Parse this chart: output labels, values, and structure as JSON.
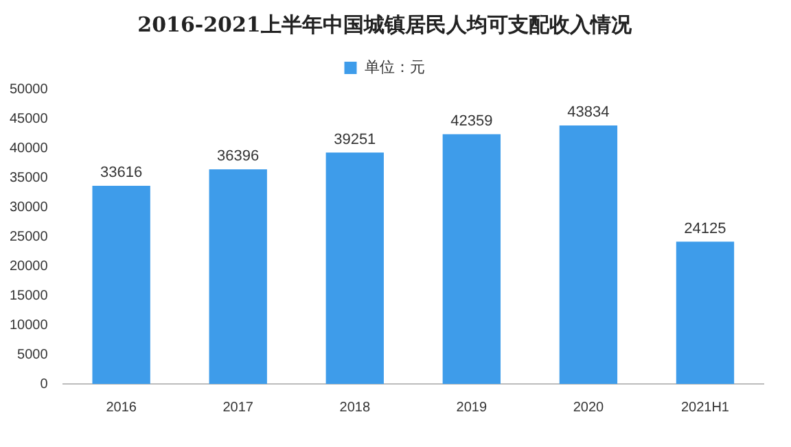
{
  "chart_data": {
    "type": "bar",
    "title": "2016-2021上半年中国城镇居民人均可支配收入情况",
    "categories": [
      "2016",
      "2017",
      "2018",
      "2019",
      "2020",
      "2021H1"
    ],
    "series": [
      {
        "name": "单位：元",
        "color": "#3e9cea",
        "values": [
          33616,
          36396,
          39251,
          42359,
          43834,
          24125
        ]
      }
    ],
    "ylim": [
      0,
      50000
    ],
    "yticks": [
      0,
      5000,
      10000,
      15000,
      20000,
      25000,
      30000,
      35000,
      40000,
      45000,
      50000
    ],
    "grid": false,
    "legend": "top",
    "data_labels": true
  }
}
